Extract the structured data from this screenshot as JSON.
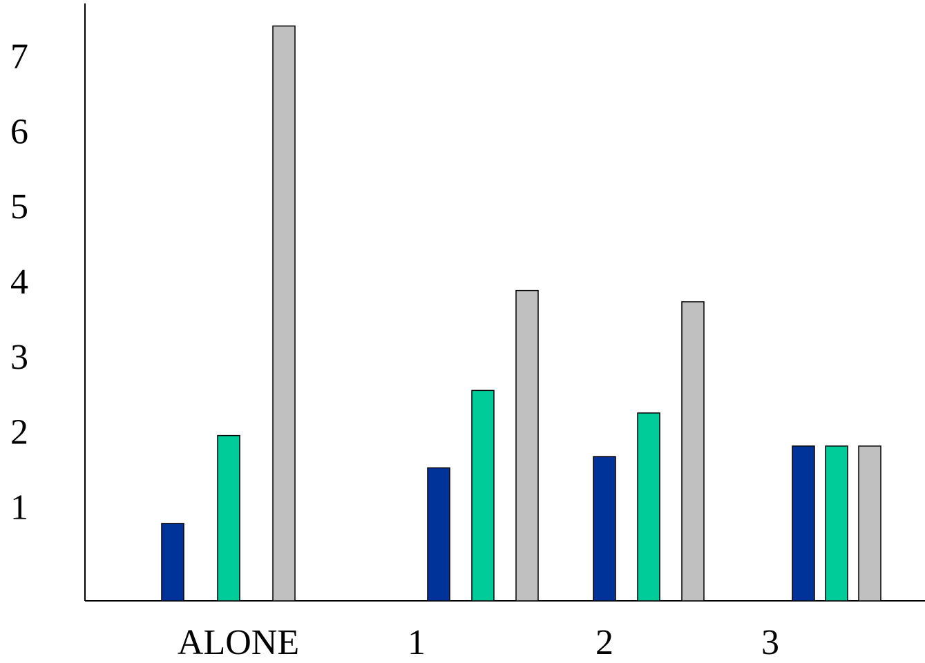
{
  "chart_data": {
    "type": "bar",
    "categories": [
      "ALONE",
      "1",
      "2",
      "3"
    ],
    "series": [
      {
        "color": "#003399",
        "values": [
          0.83,
          1.57,
          1.72,
          1.86
        ]
      },
      {
        "color": "#00CC99",
        "values": [
          2.0,
          2.6,
          2.3,
          1.86
        ]
      },
      {
        "color": "#C0C0C0",
        "values": [
          7.45,
          3.93,
          3.78,
          1.86
        ]
      }
    ],
    "ylim": [
      -0.2,
      7.75
    ],
    "yticks": [
      1,
      2,
      3,
      4,
      5,
      6,
      7
    ],
    "grid": false
  }
}
